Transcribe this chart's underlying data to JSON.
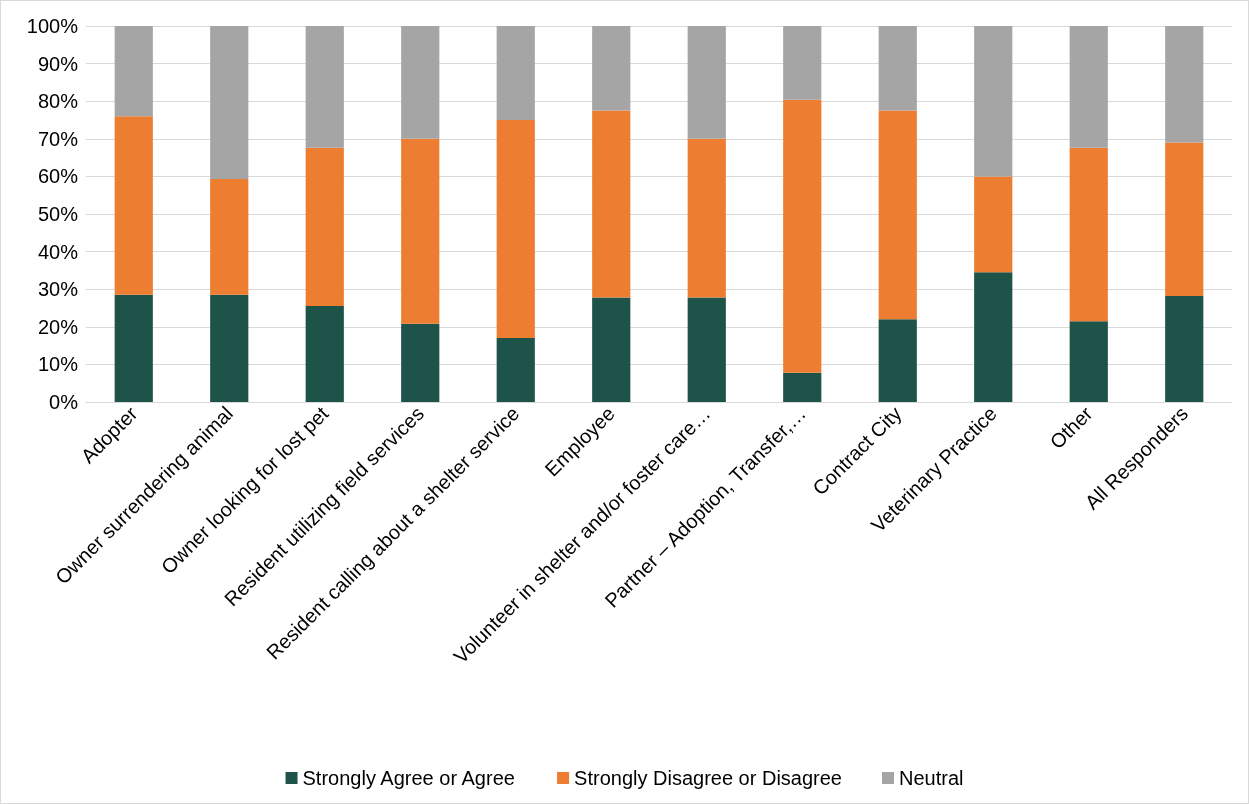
{
  "chart_data": {
    "type": "bar",
    "stacked": true,
    "categories": [
      "Adopter",
      "Owner surrendering animal",
      "Owner looking for lost pet",
      "Resident utilizing field services",
      "Resident calling about a shelter service",
      "Employee",
      "Volunteer in shelter and/or foster care…",
      "Partner – Adoption, Transfer,…",
      "Contract City",
      "Veterinary Practice",
      "Other",
      "All Responders"
    ],
    "series": [
      {
        "name": "Strongly Agree or Agree",
        "color": "#1d5349",
        "values": [
          28.5,
          28.5,
          25.5,
          20.8,
          17,
          27.8,
          27.8,
          7.8,
          22,
          34.5,
          21.5,
          28.2
        ]
      },
      {
        "name": "Strongly Disagree or Disagree",
        "color": "#ed7d31",
        "values": [
          47.5,
          30.8,
          42.1,
          49.2,
          58,
          49.7,
          42.2,
          72.6,
          55.5,
          25.5,
          46.1,
          40.8
        ]
      },
      {
        "name": "Neutral",
        "color": "#a5a5a5",
        "values": [
          24,
          40.7,
          32.4,
          30,
          25,
          22.5,
          30,
          19.6,
          22.5,
          40,
          32.4,
          31
        ]
      }
    ],
    "ylim": [
      0,
      100
    ],
    "yticks": [
      {
        "value": 0,
        "label": "0%"
      },
      {
        "value": 10,
        "label": "10%"
      },
      {
        "value": 20,
        "label": "20%"
      },
      {
        "value": 30,
        "label": "30%"
      },
      {
        "value": 40,
        "label": "40%"
      },
      {
        "value": 50,
        "label": "50%"
      },
      {
        "value": 60,
        "label": "60%"
      },
      {
        "value": 70,
        "label": "70%"
      },
      {
        "value": 80,
        "label": "80%"
      },
      {
        "value": 90,
        "label": "90%"
      },
      {
        "value": 100,
        "label": "100%"
      }
    ],
    "grid": "y",
    "legend": "bottom"
  }
}
